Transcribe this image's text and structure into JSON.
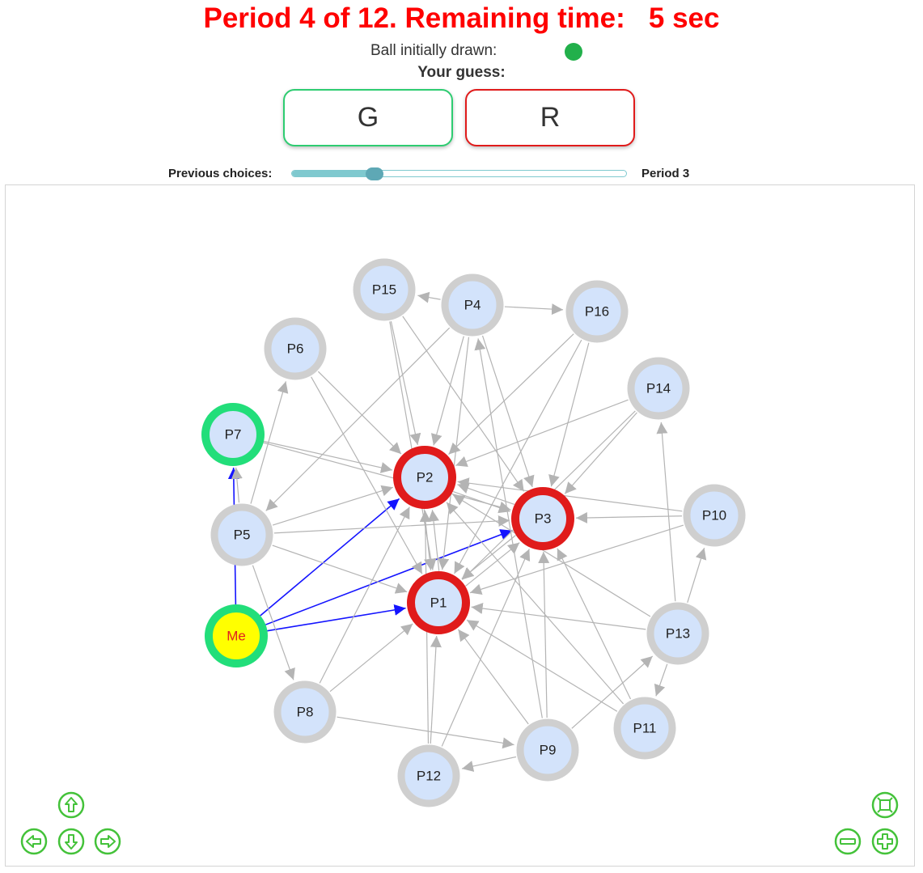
{
  "header": {
    "period_text": "Period 4 of 12. Remaining time:   5 sec",
    "ball_label": "Ball initially drawn:",
    "ball_color": "#22b04b",
    "guess_label": "Your guess:"
  },
  "buttons": {
    "green_label": "G",
    "red_label": "R",
    "green_border": "#2ecc71",
    "red_border": "#e01b1b"
  },
  "slider": {
    "label": "Previous choices:",
    "period_label": "Period 3",
    "value": 3,
    "max": 12
  },
  "colors": {
    "edge_default": "#b4b4b4",
    "edge_me": "#1414ff",
    "node_fill": "#d3e3fb",
    "ring_none": "#cfcfcf",
    "ring_red": "#e01b1b",
    "ring_green": "#22de7a",
    "me_fill": "#ffff00",
    "me_text": "#e02020",
    "nav_green": "#44c23a"
  },
  "network": {
    "nodes": [
      {
        "id": "P15",
        "label": "P15",
        "choice": "none"
      },
      {
        "id": "P4",
        "label": "P4",
        "choice": "none"
      },
      {
        "id": "P16",
        "label": "P16",
        "choice": "none"
      },
      {
        "id": "P6",
        "label": "P6",
        "choice": "none"
      },
      {
        "id": "P14",
        "label": "P14",
        "choice": "none"
      },
      {
        "id": "P7",
        "label": "P7",
        "choice": "green"
      },
      {
        "id": "P2",
        "label": "P2",
        "choice": "red"
      },
      {
        "id": "P3",
        "label": "P3",
        "choice": "red"
      },
      {
        "id": "P10",
        "label": "P10",
        "choice": "none"
      },
      {
        "id": "P5",
        "label": "P5",
        "choice": "none"
      },
      {
        "id": "P1",
        "label": "P1",
        "choice": "red"
      },
      {
        "id": "Me",
        "label": "Me",
        "choice": "green",
        "self": true
      },
      {
        "id": "P13",
        "label": "P13",
        "choice": "none"
      },
      {
        "id": "P8",
        "label": "P8",
        "choice": "none"
      },
      {
        "id": "P11",
        "label": "P11",
        "choice": "none"
      },
      {
        "id": "P9",
        "label": "P9",
        "choice": "none"
      },
      {
        "id": "P12",
        "label": "P12",
        "choice": "none"
      }
    ],
    "edges": [
      [
        "Me",
        "P1"
      ],
      [
        "Me",
        "P2"
      ],
      [
        "Me",
        "P3"
      ],
      [
        "Me",
        "P7"
      ],
      [
        "P5",
        "P7"
      ],
      [
        "P5",
        "P6"
      ],
      [
        "P5",
        "P8"
      ],
      [
        "P5",
        "P2"
      ],
      [
        "P5",
        "P3"
      ],
      [
        "P5",
        "P1"
      ],
      [
        "P7",
        "P2"
      ],
      [
        "P7",
        "P3"
      ],
      [
        "P6",
        "P2"
      ],
      [
        "P6",
        "P1"
      ],
      [
        "P15",
        "P2"
      ],
      [
        "P15",
        "P3"
      ],
      [
        "P15",
        "P1"
      ],
      [
        "P4",
        "P15"
      ],
      [
        "P4",
        "P16"
      ],
      [
        "P4",
        "P2"
      ],
      [
        "P4",
        "P1"
      ],
      [
        "P4",
        "P3"
      ],
      [
        "P4",
        "P5"
      ],
      [
        "P16",
        "P2"
      ],
      [
        "P16",
        "P3"
      ],
      [
        "P16",
        "P1"
      ],
      [
        "P14",
        "P2"
      ],
      [
        "P14",
        "P3"
      ],
      [
        "P14",
        "P1"
      ],
      [
        "P10",
        "P3"
      ],
      [
        "P10",
        "P1"
      ],
      [
        "P10",
        "P2"
      ],
      [
        "P13",
        "P14"
      ],
      [
        "P13",
        "P1"
      ],
      [
        "P13",
        "P11"
      ],
      [
        "P13",
        "P10"
      ],
      [
        "P13",
        "P2"
      ],
      [
        "P11",
        "P3"
      ],
      [
        "P11",
        "P1"
      ],
      [
        "P11",
        "P2"
      ],
      [
        "P9",
        "P12"
      ],
      [
        "P9",
        "P3"
      ],
      [
        "P9",
        "P4"
      ],
      [
        "P9",
        "P1"
      ],
      [
        "P9",
        "P13"
      ],
      [
        "P12",
        "P1"
      ],
      [
        "P12",
        "P3"
      ],
      [
        "P12",
        "P2"
      ],
      [
        "P8",
        "P9"
      ],
      [
        "P8",
        "P1"
      ],
      [
        "P8",
        "P2"
      ],
      [
        "P2",
        "P3"
      ],
      [
        "P1",
        "P2"
      ],
      [
        "P3",
        "P1"
      ],
      [
        "P2",
        "P1"
      ],
      [
        "P1",
        "P3"
      ],
      [
        "P3",
        "P2"
      ]
    ]
  },
  "nav": {
    "up_icon": "arrow-up-icon",
    "down_icon": "arrow-down-icon",
    "left_icon": "arrow-left-icon",
    "right_icon": "arrow-right-icon",
    "fit_icon": "zoom-fit-icon",
    "zoom_out_icon": "zoom-out-icon",
    "zoom_in_icon": "zoom-in-icon"
  }
}
